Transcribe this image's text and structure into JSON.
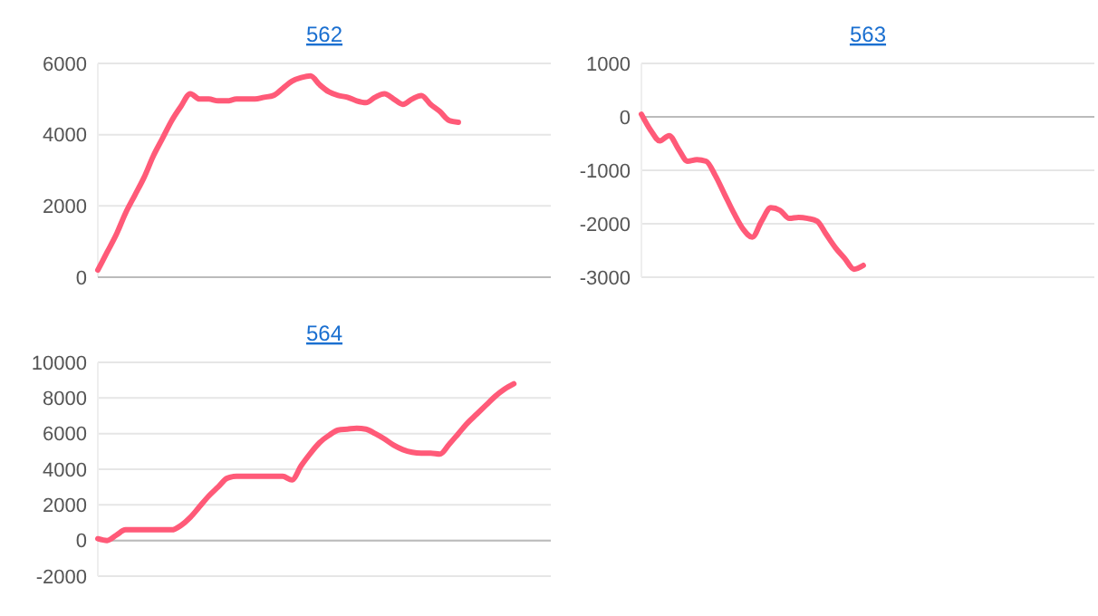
{
  "chart_data": [
    {
      "type": "line",
      "title": "562",
      "categories": [
        null,
        null,
        null,
        null,
        null,
        null,
        null,
        null,
        null,
        null,
        null,
        null,
        null,
        null,
        null,
        null,
        null,
        null,
        null,
        null,
        null,
        null,
        null,
        null,
        null,
        null,
        null,
        null,
        null,
        null,
        null,
        null,
        null,
        null,
        null,
        null,
        null,
        null,
        null,
        null,
        null,
        null,
        null,
        null,
        null,
        null,
        null,
        null,
        null,
        null
      ],
      "color": "#ff5a78",
      "grid": "y",
      "ylim": [
        0,
        6000
      ],
      "yticks": [
        0,
        2000,
        4000,
        6000
      ],
      "values": [
        200,
        700,
        1200,
        1800,
        2300,
        2800,
        3400,
        3900,
        4400,
        4800,
        5150,
        5000,
        5000,
        4950,
        4950,
        5000,
        5000,
        5000,
        5050,
        5100,
        5300,
        5500,
        5600,
        5650,
        5400,
        5200,
        5100,
        5050,
        4950,
        4900,
        5050,
        5150,
        5000,
        4850,
        5000,
        5100,
        4850,
        4650,
        4400,
        4350,
        null,
        null,
        null,
        null,
        null,
        null,
        null,
        null,
        null,
        null
      ]
    },
    {
      "type": "line",
      "title": "563",
      "categories": [
        null,
        null,
        null,
        null,
        null,
        null,
        null,
        null,
        null,
        null,
        null,
        null,
        null,
        null,
        null,
        null,
        null,
        null,
        null,
        null,
        null,
        null,
        null,
        null,
        null,
        null,
        null,
        null,
        null,
        null,
        null,
        null,
        null,
        null,
        null,
        null,
        null,
        null,
        null,
        null,
        null,
        null,
        null,
        null,
        null,
        null,
        null,
        null,
        null,
        null
      ],
      "color": "#ff5a78",
      "grid": "y",
      "ylim": [
        -3000,
        1000
      ],
      "yticks": [
        -3000,
        -2000,
        -1000,
        0,
        1000
      ],
      "values": [
        50,
        -250,
        -450,
        -350,
        -600,
        -830,
        -800,
        -830,
        -1100,
        -1450,
        -1800,
        -2100,
        -2250,
        -1950,
        -1700,
        -1750,
        -1900,
        -1880,
        -1900,
        -1950,
        -2200,
        -2450,
        -2650,
        -2850,
        -2780,
        null,
        null,
        null,
        null,
        null,
        null,
        null,
        null,
        null,
        null,
        null,
        null,
        null,
        null,
        null,
        null,
        null,
        null,
        null,
        null,
        null,
        null,
        null,
        null,
        null
      ]
    },
    {
      "type": "line",
      "title": "564",
      "categories": [
        null,
        null,
        null,
        null,
        null,
        null,
        null,
        null,
        null,
        null,
        null,
        null,
        null,
        null,
        null,
        null,
        null,
        null,
        null,
        null,
        null,
        null,
        null,
        null,
        null,
        null,
        null,
        null,
        null,
        null,
        null,
        null,
        null,
        null,
        null,
        null,
        null,
        null,
        null,
        null,
        null,
        null,
        null,
        null,
        null,
        null,
        null,
        null,
        null,
        null
      ],
      "color": "#ff5a78",
      "grid": "y",
      "ylim": [
        -2000,
        10000
      ],
      "yticks": [
        -2000,
        0,
        2000,
        4000,
        6000,
        8000,
        10000
      ],
      "values": [
        100,
        0,
        300,
        600,
        600,
        600,
        600,
        600,
        600,
        850,
        1300,
        1900,
        2500,
        3000,
        3500,
        3600,
        3600,
        3600,
        3600,
        3600,
        3600,
        3400,
        4200,
        4900,
        5500,
        5900,
        6200,
        6250,
        6300,
        6250,
        6000,
        5700,
        5350,
        5100,
        4950,
        4900,
        4900,
        4850,
        5400,
        6000,
        6600,
        7100,
        7600,
        8100,
        8500,
        8800,
        null,
        null,
        null,
        null
      ]
    }
  ]
}
